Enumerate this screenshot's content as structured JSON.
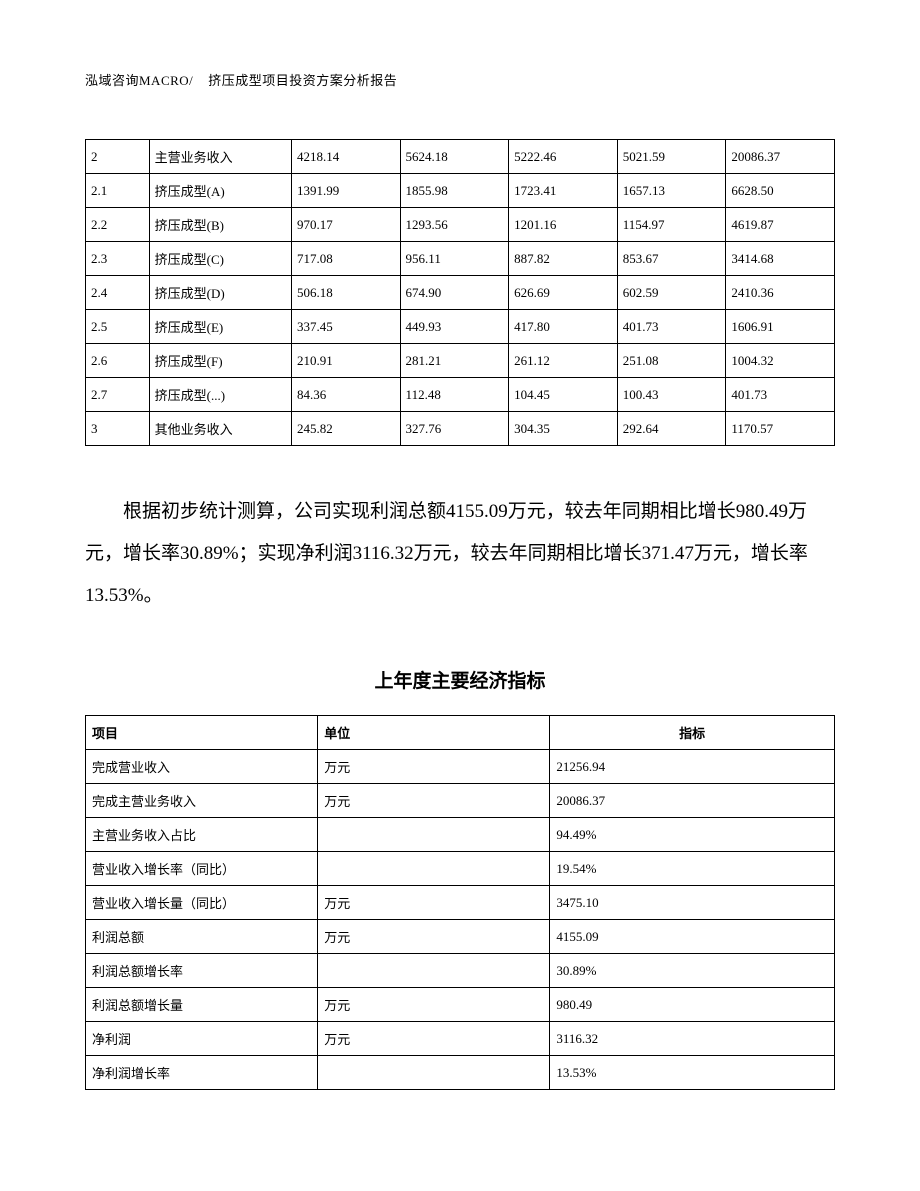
{
  "header": {
    "company": "泓域咨询MACRO/",
    "title": "挤压成型项目投资方案分析报告"
  },
  "table1": {
    "rows": [
      [
        "2",
        "主营业务收入",
        "4218.14",
        "5624.18",
        "5222.46",
        "5021.59",
        "20086.37"
      ],
      [
        "2.1",
        "挤压成型(A)",
        "1391.99",
        "1855.98",
        "1723.41",
        "1657.13",
        "6628.50"
      ],
      [
        "2.2",
        "挤压成型(B)",
        "970.17",
        "1293.56",
        "1201.16",
        "1154.97",
        "4619.87"
      ],
      [
        "2.3",
        "挤压成型(C)",
        "717.08",
        "956.11",
        "887.82",
        "853.67",
        "3414.68"
      ],
      [
        "2.4",
        "挤压成型(D)",
        "506.18",
        "674.90",
        "626.69",
        "602.59",
        "2410.36"
      ],
      [
        "2.5",
        "挤压成型(E)",
        "337.45",
        "449.93",
        "417.80",
        "401.73",
        "1606.91"
      ],
      [
        "2.6",
        "挤压成型(F)",
        "210.91",
        "281.21",
        "261.12",
        "251.08",
        "1004.32"
      ],
      [
        "2.7",
        "挤压成型(...)",
        "84.36",
        "112.48",
        "104.45",
        "100.43",
        "401.73"
      ],
      [
        "3",
        "其他业务收入",
        "245.82",
        "327.76",
        "304.35",
        "292.64",
        "1170.57"
      ]
    ]
  },
  "paragraph": "根据初步统计测算，公司实现利润总额4155.09万元，较去年同期相比增长980.49万元，增长率30.89%；实现净利润3116.32万元，较去年同期相比增长371.47万元，增长率13.53%。",
  "section_title": "上年度主要经济指标",
  "table2": {
    "headers": [
      "项目",
      "单位",
      "指标"
    ],
    "rows": [
      [
        "完成营业收入",
        "万元",
        "21256.94"
      ],
      [
        "完成主营业务收入",
        "万元",
        "20086.37"
      ],
      [
        "主营业务收入占比",
        "",
        "94.49%"
      ],
      [
        "营业收入增长率（同比）",
        "",
        "19.54%"
      ],
      [
        "营业收入增长量（同比）",
        "万元",
        "3475.10"
      ],
      [
        "利润总额",
        "万元",
        "4155.09"
      ],
      [
        "利润总额增长率",
        "",
        "30.89%"
      ],
      [
        "利润总额增长量",
        "万元",
        "980.49"
      ],
      [
        "净利润",
        "万元",
        "3116.32"
      ],
      [
        "净利润增长率",
        "",
        "13.53%"
      ]
    ]
  }
}
